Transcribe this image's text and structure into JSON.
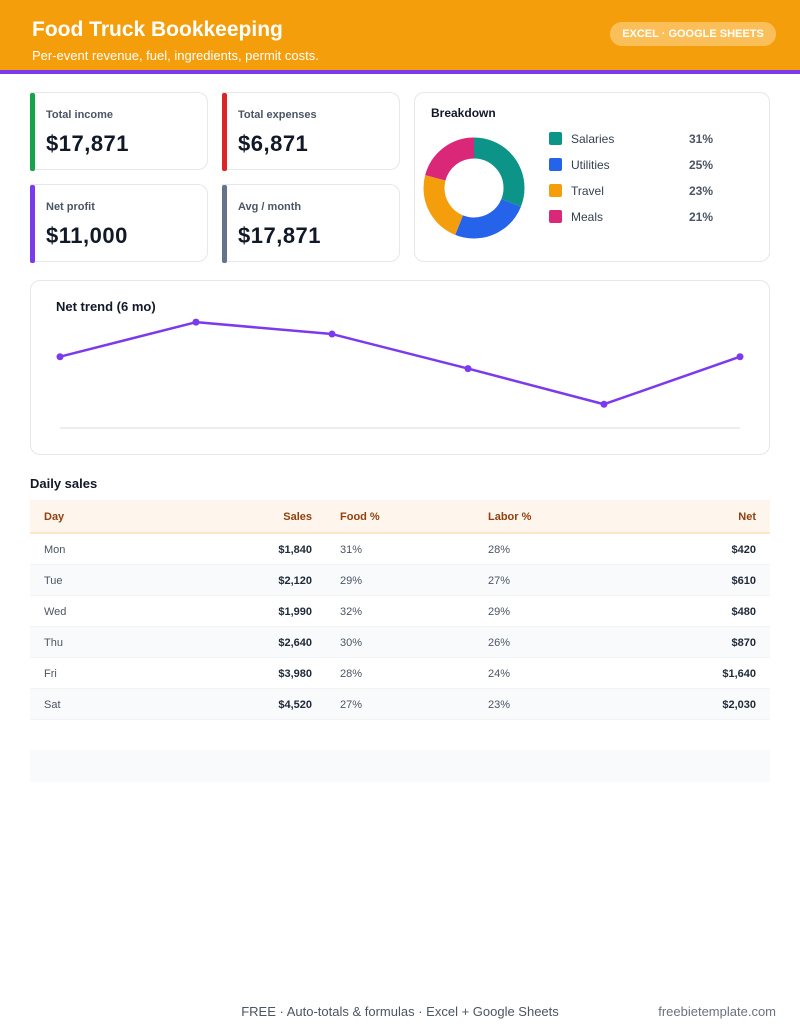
{
  "header": {
    "title": "Food Truck Bookkeeping",
    "subtitle": "Per-event revenue, fuel, ingredients, permit costs.",
    "badge": "EXCEL · GOOGLE SHEETS"
  },
  "kpis": [
    {
      "label": "Total income",
      "value": "$17,871",
      "color": "#16a34a"
    },
    {
      "label": "Total expenses",
      "value": "$6,871",
      "color": "#dc2626"
    },
    {
      "label": "Net profit",
      "value": "$11,000",
      "color": "#7c3aed"
    },
    {
      "label": "Avg / month",
      "value": "$17,871",
      "color": "#64748b"
    }
  ],
  "breakdown": {
    "title": "Breakdown",
    "items": [
      {
        "name": "Salaries",
        "pct": "31%",
        "value": 31,
        "color": "#0d9488"
      },
      {
        "name": "Utilities",
        "pct": "25%",
        "value": 25,
        "color": "#2563eb"
      },
      {
        "name": "Travel",
        "pct": "23%",
        "value": 23,
        "color": "#f59e0b"
      },
      {
        "name": "Meals",
        "pct": "21%",
        "value": 21,
        "color": "#db2777"
      }
    ]
  },
  "chart_data": {
    "type": "line",
    "title": "Net trend (6 mo)",
    "x": [
      1,
      2,
      3,
      4,
      5,
      6
    ],
    "series": [
      {
        "values": [
          0.66,
          0.98,
          0.87,
          0.55,
          0.22,
          0.66
        ]
      }
    ],
    "ylim": [
      0,
      1
    ],
    "grid": false,
    "color": "#7c3aed"
  },
  "table": {
    "title": "Daily sales",
    "headers": [
      "Day",
      "Sales",
      "Food %",
      "Labor %",
      "Net"
    ],
    "rows": [
      [
        "Mon",
        "$1,840",
        "31%",
        "28%",
        "$420"
      ],
      [
        "Tue",
        "$2,120",
        "29%",
        "27%",
        "$610"
      ],
      [
        "Wed",
        "$1,990",
        "32%",
        "29%",
        "$480"
      ],
      [
        "Thu",
        "$2,640",
        "30%",
        "26%",
        "$870"
      ],
      [
        "Fri",
        "$3,980",
        "28%",
        "24%",
        "$1,640"
      ],
      [
        "Sat",
        "$4,520",
        "27%",
        "23%",
        "$2,030"
      ]
    ]
  },
  "footer": {
    "text": "FREE  ·  Auto-totals & formulas  ·  Excel + Google Sheets",
    "site": "freebietemplate.com"
  }
}
